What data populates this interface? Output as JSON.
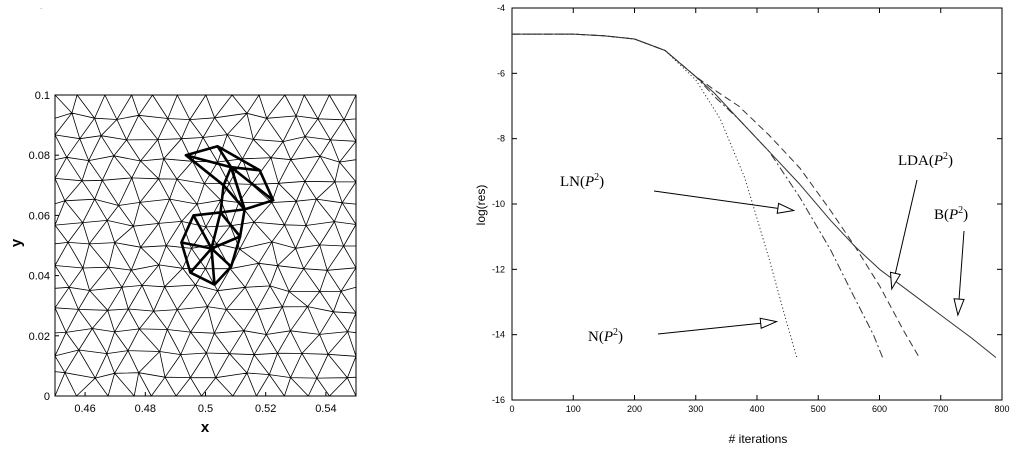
{
  "chart_data": [
    {
      "type": "mesh",
      "xlabel": "x",
      "ylabel": "y",
      "xlim": [
        0.45,
        0.55
      ],
      "ylim": [
        0.0,
        0.1
      ],
      "xticks": [
        "0.46",
        "0.48",
        "0.5",
        "0.52",
        "0.54"
      ],
      "xtick_values": [
        0.46,
        0.48,
        0.5,
        0.52,
        0.54
      ],
      "yticks": [
        "0",
        "0.02",
        "0.04",
        "0.06",
        "0.08",
        "0.1"
      ],
      "ytick_values": [
        0.0,
        0.02,
        0.04,
        0.06,
        0.08,
        0.1
      ],
      "highlight_polygons": [
        {
          "center": [
            0.502,
            0.049
          ],
          "ring": [
            [
              0.492,
              0.051
            ],
            [
              0.496,
              0.06
            ],
            [
              0.505,
              0.061
            ],
            [
              0.5115,
              0.053
            ],
            [
              0.5085,
              0.043
            ],
            [
              0.503,
              0.037
            ],
            [
              0.495,
              0.041
            ]
          ]
        },
        {
          "center": [
            0.5085,
            0.076
          ],
          "ring": [
            [
              0.4935,
              0.08
            ],
            [
              0.504,
              0.083
            ],
            [
              0.518,
              0.075
            ],
            [
              0.5225,
              0.065
            ],
            [
              0.513,
              0.062
            ],
            [
              0.506,
              0.07
            ]
          ]
        }
      ],
      "highlight_extra_edges": [
        [
          [
            0.5085,
            0.076
          ],
          [
            0.513,
            0.062
          ]
        ],
        [
          [
            0.513,
            0.062
          ],
          [
            0.5115,
            0.053
          ]
        ],
        [
          [
            0.506,
            0.07
          ],
          [
            0.505,
            0.061
          ]
        ],
        [
          [
            0.513,
            0.062
          ],
          [
            0.505,
            0.061
          ]
        ]
      ]
    },
    {
      "type": "line",
      "xlabel": "# iterations",
      "ylabel": "log(res)",
      "xlim": [
        0,
        800
      ],
      "ylim": [
        -16,
        -4
      ],
      "xticks": [
        "0",
        "100",
        "200",
        "300",
        "400",
        "500",
        "600",
        "700",
        "800"
      ],
      "xtick_values": [
        0,
        100,
        200,
        300,
        400,
        500,
        600,
        700,
        800
      ],
      "yticks": [
        "-4",
        "-6",
        "-8",
        "-10",
        "-12",
        "-14",
        "-16"
      ],
      "ytick_values": [
        -4,
        -6,
        -8,
        -10,
        -12,
        -14,
        -16
      ],
      "series": [
        {
          "name": "B(P^2)",
          "style": "solid",
          "x": [
            0,
            100,
            150,
            200,
            250,
            300,
            330,
            370,
            420,
            470,
            520,
            560,
            600,
            650,
            700,
            750,
            790
          ],
          "y": [
            -4.8,
            -4.8,
            -4.85,
            -4.95,
            -5.3,
            -6.1,
            -6.6,
            -7.4,
            -8.4,
            -9.4,
            -10.5,
            -11.3,
            -12.0,
            -12.7,
            -13.4,
            -14.1,
            -14.7
          ]
        },
        {
          "name": "LDA(P^2)",
          "style": "dashed",
          "x": [
            0,
            100,
            150,
            200,
            250,
            300,
            330,
            370,
            420,
            470,
            520,
            560,
            600,
            640,
            665
          ],
          "y": [
            -4.8,
            -4.8,
            -4.85,
            -4.95,
            -5.3,
            -6.1,
            -6.5,
            -7.0,
            -7.9,
            -8.9,
            -10.2,
            -11.3,
            -12.5,
            -13.9,
            -14.7
          ]
        },
        {
          "name": "LN(P^2)",
          "style": "dashdot",
          "x": [
            0,
            100,
            150,
            200,
            250,
            300,
            330,
            370,
            420,
            470,
            520,
            560,
            590,
            605
          ],
          "y": [
            -4.8,
            -4.8,
            -4.85,
            -4.95,
            -5.3,
            -6.1,
            -6.7,
            -7.4,
            -8.4,
            -9.8,
            -11.4,
            -12.9,
            -14.0,
            -14.7
          ]
        },
        {
          "name": "N(P^2)",
          "style": "dotted",
          "x": [
            0,
            100,
            150,
            200,
            250,
            300,
            340,
            380,
            420,
            445,
            465
          ],
          "y": [
            -4.8,
            -4.8,
            -4.85,
            -4.95,
            -5.3,
            -6.2,
            -7.4,
            -9.2,
            -11.7,
            -13.4,
            -14.7
          ]
        }
      ],
      "annotations": [
        {
          "base": "LN(",
          "var": "P",
          "sup": "2",
          "close": ")",
          "series": "LN(P^2)"
        },
        {
          "base": "N(",
          "var": "P",
          "sup": "2",
          "close": ")",
          "series": "N(P^2)"
        },
        {
          "base": "LDA(",
          "var": "P",
          "sup": "2",
          "close": ")",
          "series": "LDA(P^2)"
        },
        {
          "base": "B(",
          "var": "P",
          "sup": "2",
          "close": ")",
          "series": "B(P^2)"
        }
      ],
      "arrow_targets": [
        {
          "series": "LN(P^2)",
          "x": 460,
          "y": -10.2
        },
        {
          "series": "N(P^2)",
          "x": 432,
          "y": -13.6
        },
        {
          "series": "LDA(P^2)",
          "x": 620,
          "y": -12.6
        },
        {
          "series": "B(P^2)",
          "x": 728,
          "y": -13.4
        }
      ],
      "grid": false
    }
  ]
}
